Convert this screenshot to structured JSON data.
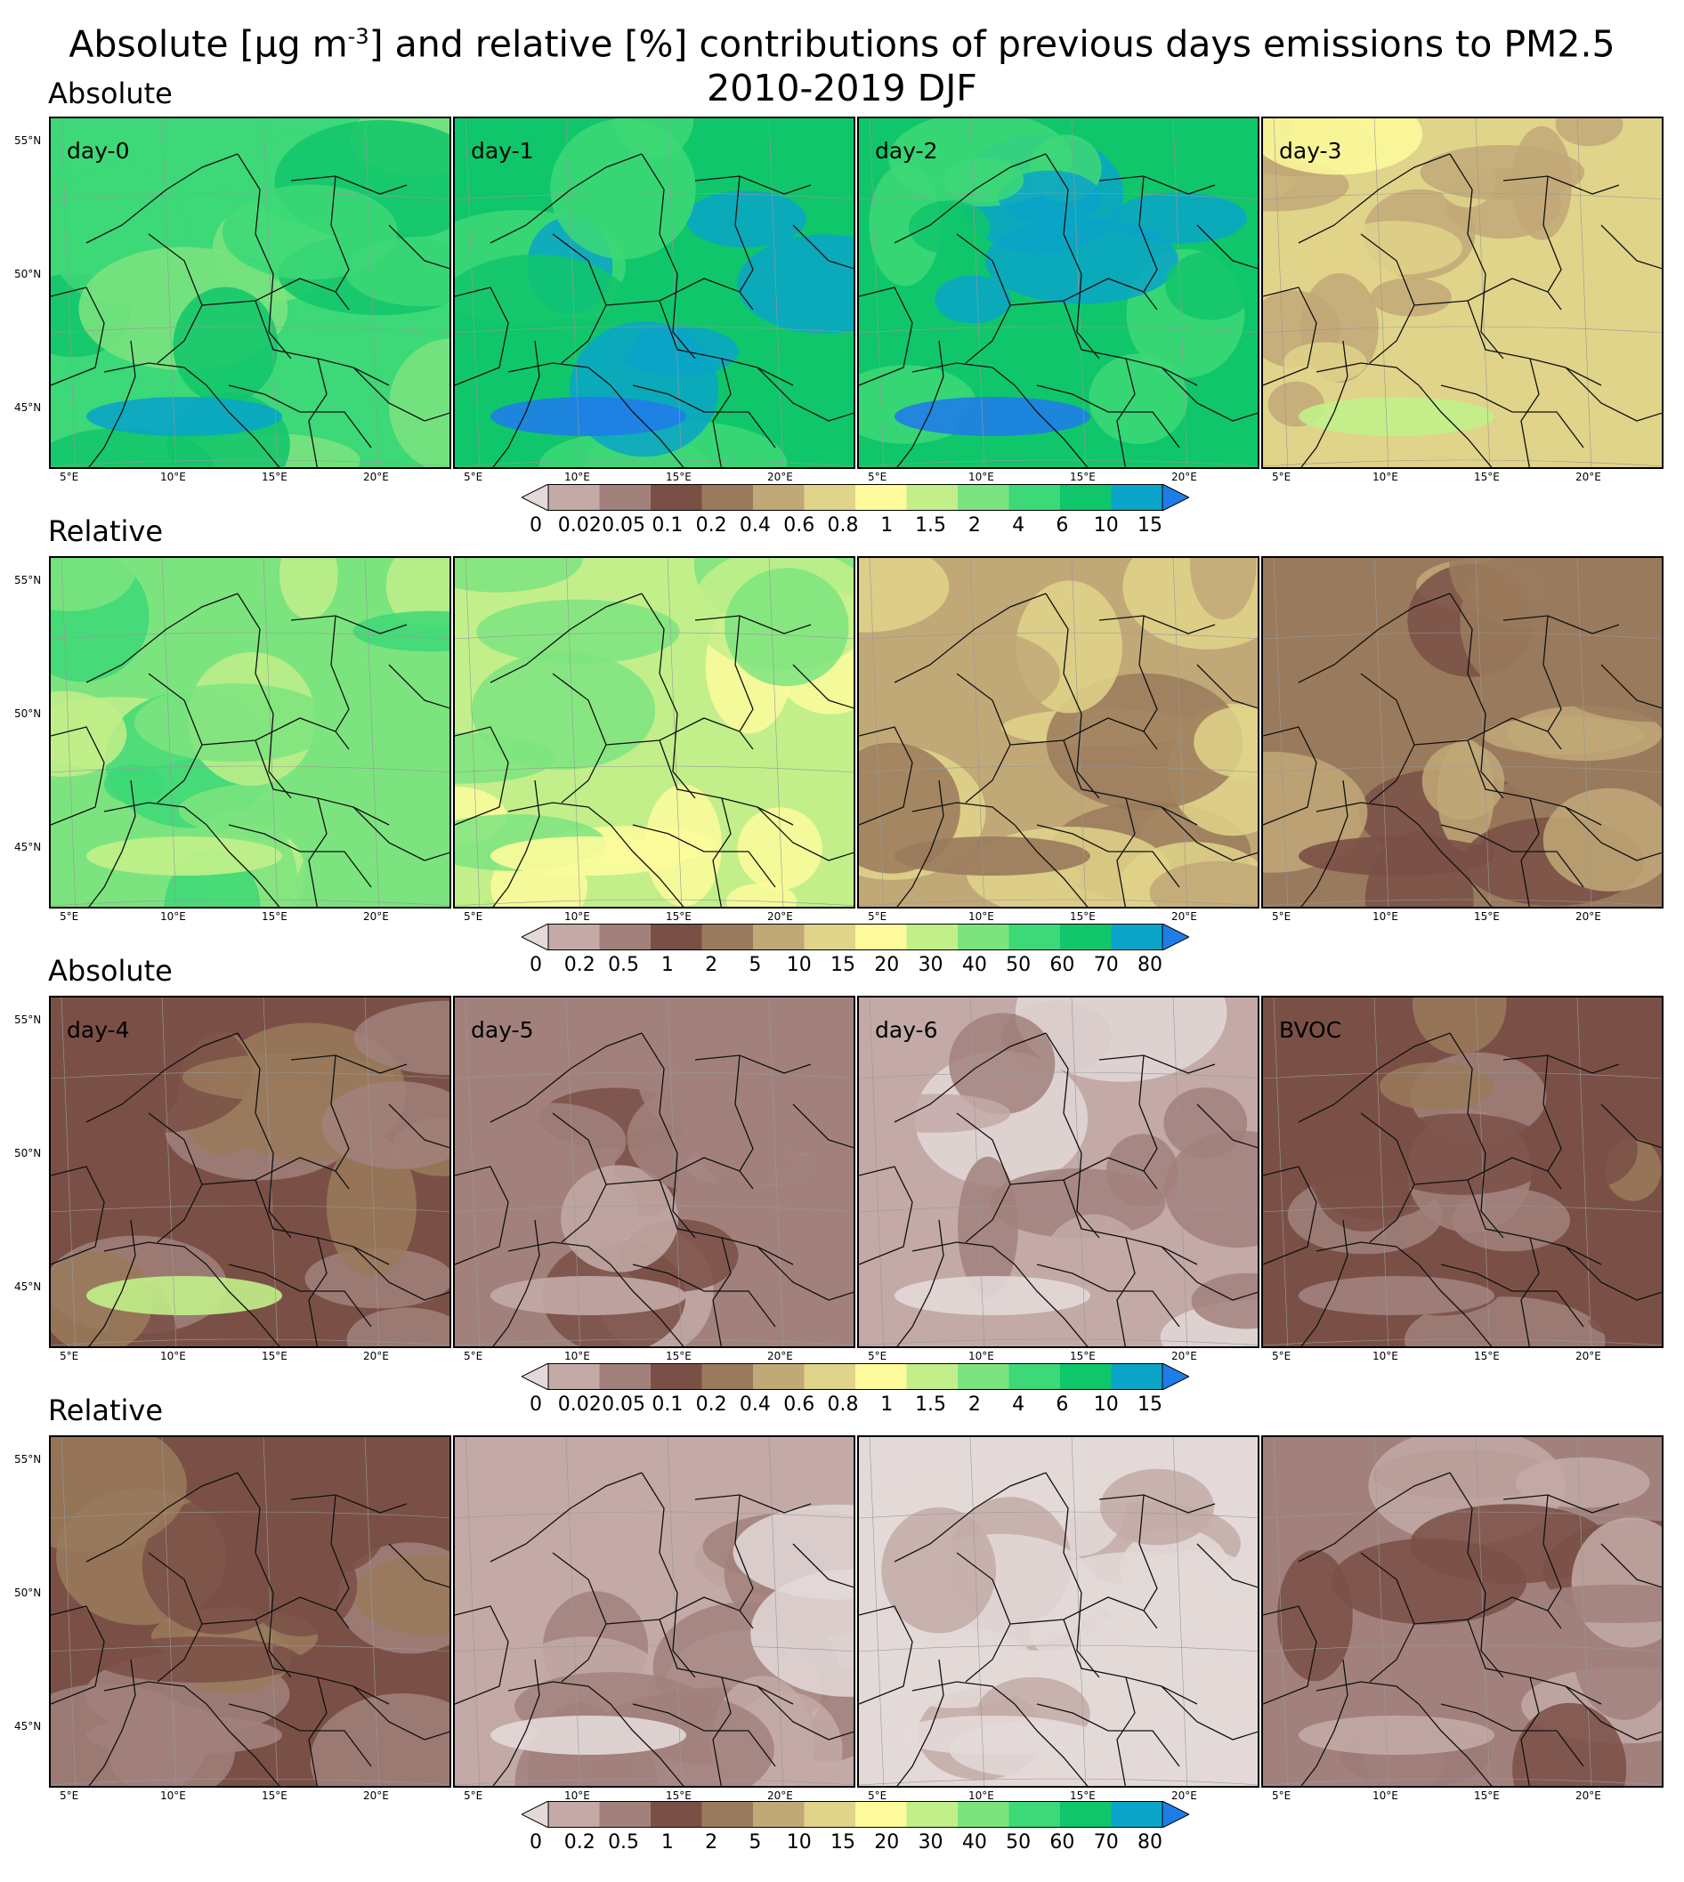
{
  "title_line1_pre": "Absolute [µg m",
  "title_sup": "-3",
  "title_line1_post": "] and relative [%] contributions of previous days emissions to PM2.5",
  "title_line2": "2010-2019 DJF",
  "sections": [
    {
      "label": "Absolute"
    },
    {
      "label": "Relative"
    },
    {
      "label": "Absolute"
    },
    {
      "label": "Relative"
    }
  ],
  "panel_labels": [
    "day-0",
    "day-1",
    "day-2",
    "day-3",
    "day-4",
    "day-5",
    "day-6",
    "BVOC"
  ],
  "lat_labels": [
    "55°N",
    "50°N",
    "45°N"
  ],
  "lon_labels": [
    "5°E",
    "10°E",
    "15°E",
    "20°E"
  ],
  "colorbars": {
    "absolute": {
      "ticks": [
        "0",
        "0.02",
        "0.05",
        "0.1",
        "0.2",
        "0.4",
        "0.6",
        "0.8",
        "1",
        "1.5",
        "2",
        "4",
        "6",
        "10",
        "15"
      ],
      "unit": "µg m-3"
    },
    "relative": {
      "ticks": [
        "0",
        "0.2",
        "0.5",
        "1",
        "2",
        "5",
        "10",
        "15",
        "20",
        "30",
        "40",
        "50",
        "60",
        "70",
        "80"
      ],
      "unit": "%"
    }
  },
  "colormap": [
    "#e3d9d8",
    "#c3aaa7",
    "#a2817d",
    "#7a5046",
    "#9a7a5c",
    "#c1a877",
    "#e0d48a",
    "#fdfb9b",
    "#c2ef8a",
    "#7ce47f",
    "#3dd877",
    "#10c66a",
    "#0aa5c8",
    "#1f7de8"
  ],
  "panel_dominant_classes": [
    {
      "row": 0,
      "classes": [
        10,
        11,
        11,
        6
      ]
    },
    {
      "row": 1,
      "classes": [
        9,
        8,
        5,
        4
      ]
    },
    {
      "row": 2,
      "classes": [
        3,
        2,
        1,
        3
      ]
    },
    {
      "row": 3,
      "classes": [
        3,
        1,
        0,
        2
      ]
    }
  ]
}
